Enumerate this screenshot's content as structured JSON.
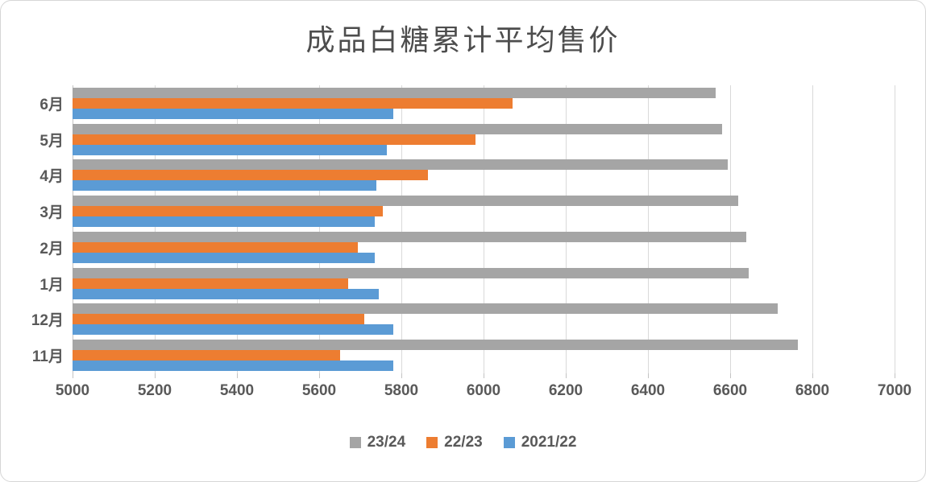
{
  "title": "成品白糖累计平均售价",
  "colors": {
    "series_gray": "#A5A5A5",
    "series_orange": "#ED7D31",
    "series_blue": "#5B9BD5",
    "axis_text": "#595959",
    "gridline": "#D9D9D9",
    "axis_line": "#C3C3C3",
    "title_text": "#4D4D4D",
    "frame_border": "#D6D6D6"
  },
  "chart_data": {
    "type": "bar",
    "orientation": "horizontal",
    "title": "成品白糖累计平均售价",
    "categories": [
      "6月",
      "5月",
      "4月",
      "3月",
      "2月",
      "1月",
      "12月",
      "11月"
    ],
    "series": [
      {
        "name": "23/24",
        "color": "#A5A5A5",
        "values": [
          6565,
          6580,
          6595,
          6620,
          6640,
          6645,
          6715,
          6765
        ]
      },
      {
        "name": "22/23",
        "color": "#ED7D31",
        "values": [
          6070,
          5980,
          5865,
          5755,
          5695,
          5670,
          5710,
          5650
        ]
      },
      {
        "name": "2021/22",
        "color": "#5B9BD5",
        "values": [
          5780,
          5765,
          5740,
          5735,
          5735,
          5745,
          5780,
          5780
        ]
      }
    ],
    "xlim": [
      5000,
      7000
    ],
    "x_ticks": [
      5000,
      5200,
      5400,
      5600,
      5800,
      6000,
      6200,
      6400,
      6600,
      6800,
      7000
    ],
    "grid": true,
    "legend_position": "bottom"
  }
}
